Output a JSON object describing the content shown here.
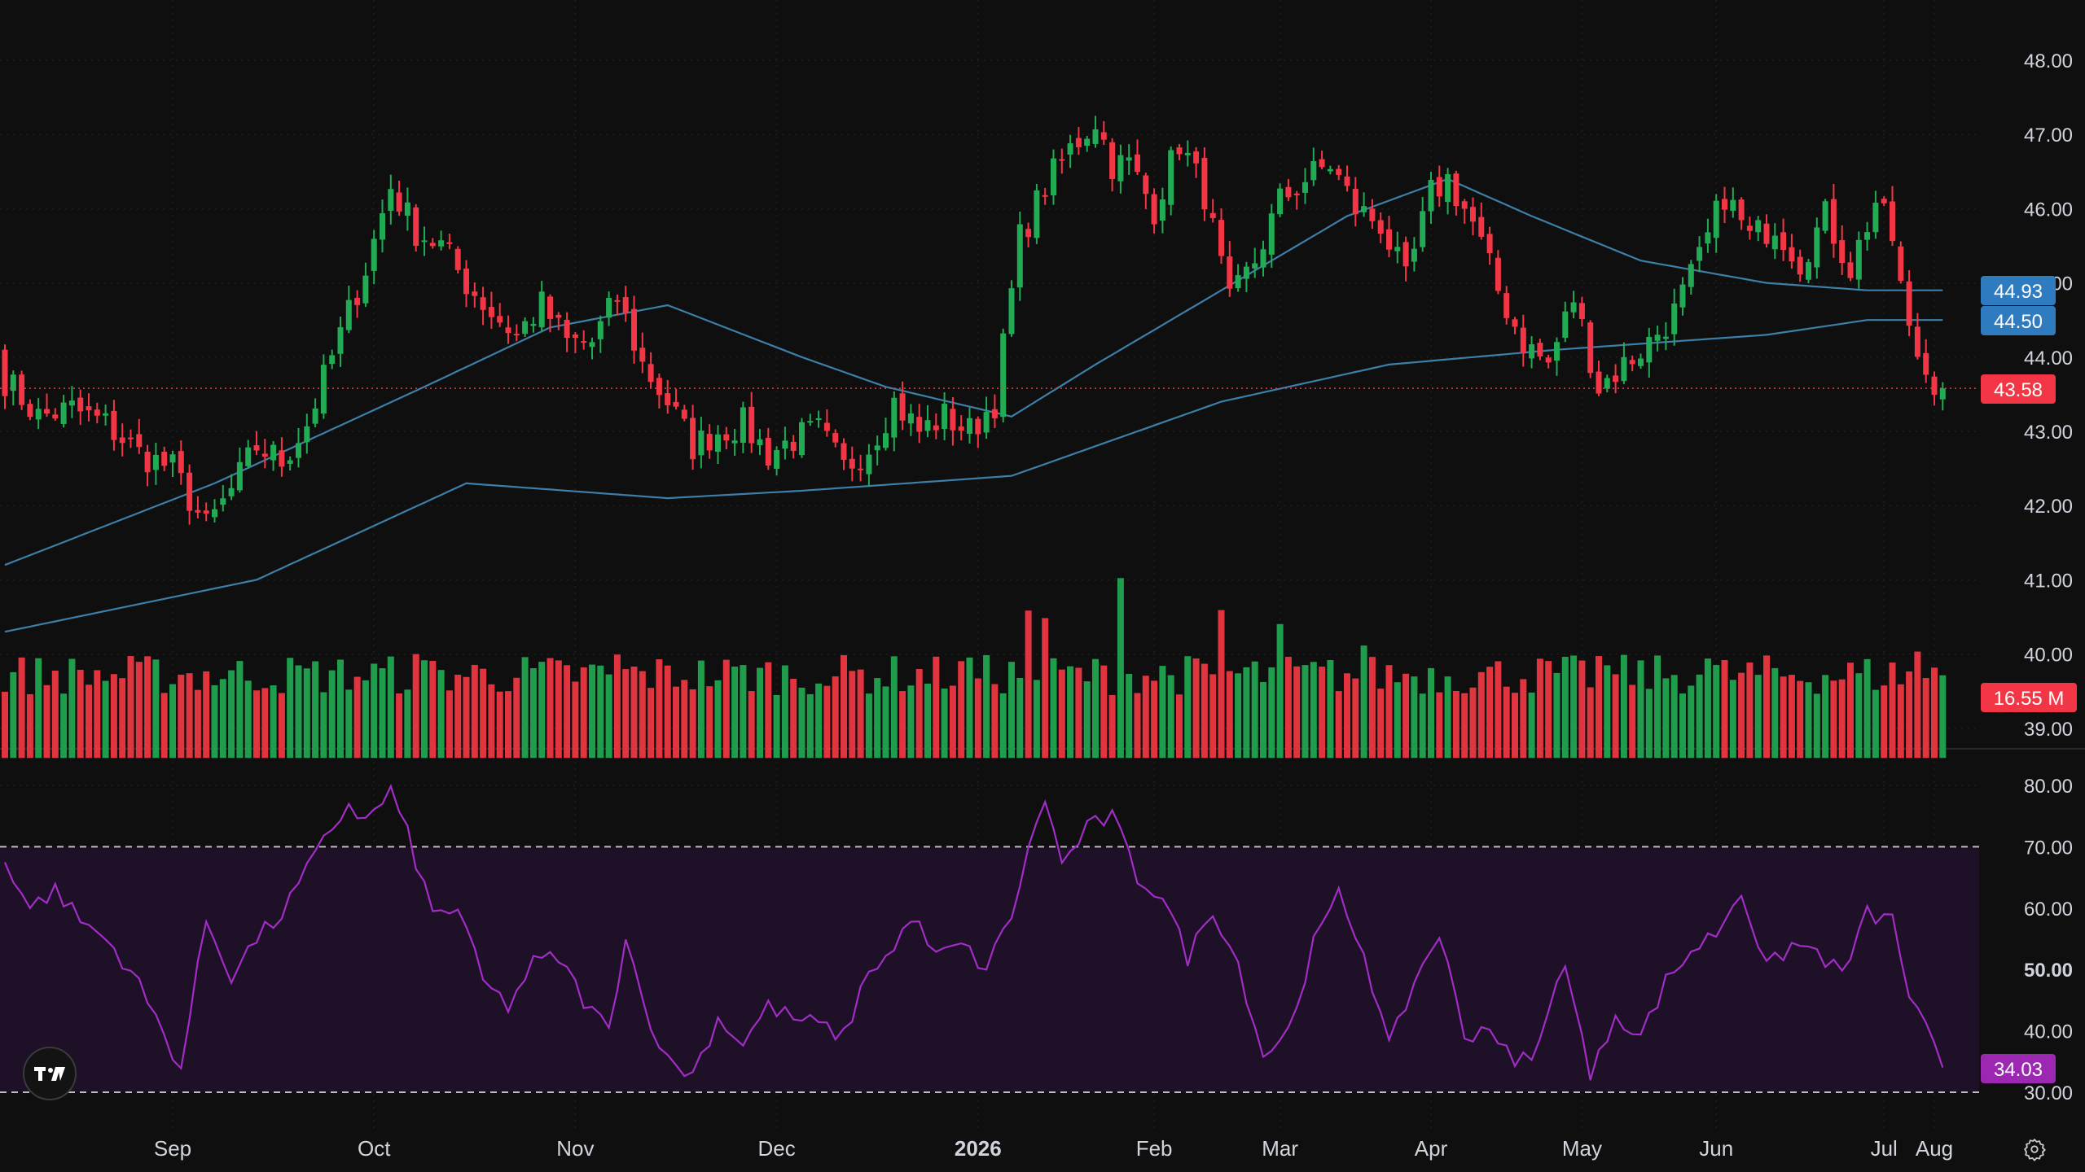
{
  "colors": {
    "background": "#0f0f0f",
    "grid": "#1f1f1f",
    "up": "#22ab55",
    "down": "#f23645",
    "up_volume": "#1f9d4d",
    "down_volume": "#e0343f",
    "ma_line": "#3d7fa8",
    "ma_tag": "#2f7bbf",
    "rsi_line": "#a12dc6",
    "rsi_band": "#1e1026",
    "rsi_tag": "#9c27b0",
    "text": "#d1d4dc"
  },
  "icons": {
    "logo": "tradingview-logo-icon",
    "settings": "gear-icon"
  },
  "price_tags": {
    "ma_short": "44.93",
    "ma_long": "44.50",
    "last_price": "43.58",
    "volume": "16.55 M",
    "rsi": "34.03"
  },
  "chart_data": [
    {
      "type": "candlestick",
      "grid": true,
      "y_axis_position": "right",
      "ylim": [
        38.6,
        48.4
      ],
      "yticks": [
        "39.00",
        "40.00",
        "41.00",
        "42.00",
        "43.00",
        "44.00",
        "45.00",
        "46.00",
        "47.00",
        "48.00"
      ],
      "x_labels": [
        "Sep",
        "Oct",
        "Nov",
        "Dec",
        "2026",
        "Feb",
        "Mar",
        "Apr",
        "May",
        "Jun",
        "Jul",
        "Aug"
      ],
      "bold_x_labels": [
        "2026"
      ],
      "anchors": {
        "open_first": 44.1,
        "close": [
          [
            0,
            43.7
          ],
          [
            4,
            43.2
          ],
          [
            8,
            43.3
          ],
          [
            12,
            43.1
          ],
          [
            16,
            42.7
          ],
          [
            20,
            42.5
          ],
          [
            24,
            41.7
          ],
          [
            27,
            42.2
          ],
          [
            30,
            42.8
          ],
          [
            33,
            42.6
          ],
          [
            36,
            43.1
          ],
          [
            40,
            44.3
          ],
          [
            43,
            45.2
          ],
          [
            46,
            46.3
          ],
          [
            49,
            45.7
          ],
          [
            52,
            45.5
          ],
          [
            55,
            45.0
          ],
          [
            58,
            44.6
          ],
          [
            61,
            44.3
          ],
          [
            64,
            44.7
          ],
          [
            67,
            44.2
          ],
          [
            70,
            44.2
          ],
          [
            73,
            44.8
          ],
          [
            76,
            43.9
          ],
          [
            79,
            43.4
          ],
          [
            82,
            42.8
          ],
          [
            85,
            43.0
          ],
          [
            88,
            43.1
          ],
          [
            91,
            42.7
          ],
          [
            94,
            42.9
          ],
          [
            97,
            43.0
          ],
          [
            100,
            42.5
          ],
          [
            103,
            42.8
          ],
          [
            106,
            43.4
          ],
          [
            109,
            43.0
          ],
          [
            112,
            43.2
          ],
          [
            115,
            43.0
          ],
          [
            118,
            43.4
          ],
          [
            121,
            45.6
          ],
          [
            124,
            46.3
          ],
          [
            127,
            46.8
          ],
          [
            130,
            47.2
          ],
          [
            132,
            46.6
          ],
          [
            134,
            46.6
          ],
          [
            137,
            46.0
          ],
          [
            140,
            46.9
          ],
          [
            143,
            46.2
          ],
          [
            146,
            44.7
          ],
          [
            149,
            45.3
          ],
          [
            152,
            46.1
          ],
          [
            155,
            46.4
          ],
          [
            158,
            46.6
          ],
          [
            161,
            46.0
          ],
          [
            164,
            45.8
          ],
          [
            167,
            45.0
          ],
          [
            170,
            46.2
          ],
          [
            172,
            46.4
          ],
          [
            175,
            45.8
          ],
          [
            178,
            44.9
          ],
          [
            181,
            44.2
          ],
          [
            184,
            43.9
          ],
          [
            187,
            44.8
          ],
          [
            190,
            43.6
          ],
          [
            193,
            43.9
          ],
          [
            196,
            44.2
          ],
          [
            199,
            44.6
          ],
          [
            202,
            45.3
          ],
          [
            205,
            46.2
          ],
          [
            208,
            45.6
          ],
          [
            211,
            45.8
          ],
          [
            214,
            45.3
          ],
          [
            217,
            45.9
          ],
          [
            220,
            45.2
          ],
          [
            223,
            46.1
          ],
          [
            225,
            45.6
          ],
          [
            227,
            44.3
          ],
          [
            229,
            43.8
          ],
          [
            231,
            43.58
          ]
        ],
        "wick_noise": 0.18
      },
      "moving_averages": [
        {
          "values": [
            [
              0,
              41.2
            ],
            [
              25,
              42.3
            ],
            [
              50,
              43.6
            ],
            [
              65,
              44.4
            ],
            [
              79,
              44.7
            ],
            [
              95,
              44.0
            ],
            [
              105,
              43.6
            ],
            [
              120,
              43.2
            ],
            [
              130,
              43.9
            ],
            [
              145,
              44.9
            ],
            [
              160,
              45.9
            ],
            [
              172,
              46.4
            ],
            [
              182,
              45.9
            ],
            [
              195,
              45.3
            ],
            [
              210,
              45.0
            ],
            [
              222,
              44.9
            ],
            [
              231,
              44.9
            ]
          ]
        },
        {
          "values": [
            [
              0,
              40.3
            ],
            [
              30,
              41.0
            ],
            [
              55,
              42.3
            ],
            [
              79,
              42.1
            ],
            [
              95,
              42.2
            ],
            [
              120,
              42.4
            ],
            [
              145,
              43.4
            ],
            [
              165,
              43.9
            ],
            [
              185,
              44.1
            ],
            [
              210,
              44.3
            ],
            [
              222,
              44.5
            ],
            [
              231,
              44.5
            ]
          ]
        }
      ]
    },
    {
      "type": "bar",
      "role": "volume",
      "base_line_price": 38.6,
      "top_reference_price": 40.0,
      "volume_units": "M",
      "last_volume": 16.55,
      "typical_volume": 18.0,
      "peaks": [
        [
          49,
          20.8
        ],
        [
          73,
          20.7
        ],
        [
          97,
          14.9
        ],
        [
          115,
          20.1
        ],
        [
          122,
          29.5
        ],
        [
          124,
          28.0
        ],
        [
          133,
          36.0
        ],
        [
          145,
          29.6
        ],
        [
          152,
          26.8
        ],
        [
          162,
          22.5
        ],
        [
          190,
          20.4
        ],
        [
          203,
          19.9
        ],
        [
          228,
          21.3
        ]
      ]
    },
    {
      "type": "line",
      "role": "rsi",
      "ylim": [
        27,
        86
      ],
      "yticks": [
        "30.00",
        "40.00",
        "50.00",
        "60.00",
        "70.00",
        "80.00"
      ],
      "bold_yticks": [
        "50.00"
      ],
      "band": [
        30,
        70
      ],
      "values": [
        [
          0,
          68
        ],
        [
          3,
          60
        ],
        [
          6,
          63
        ],
        [
          9,
          58
        ],
        [
          12,
          55
        ],
        [
          15,
          50
        ],
        [
          18,
          42
        ],
        [
          21,
          34
        ],
        [
          24,
          58
        ],
        [
          27,
          49
        ],
        [
          30,
          55
        ],
        [
          33,
          59
        ],
        [
          36,
          66
        ],
        [
          39,
          73
        ],
        [
          41,
          77
        ],
        [
          43,
          74
        ],
        [
          46,
          79
        ],
        [
          48,
          72
        ],
        [
          51,
          59
        ],
        [
          54,
          60
        ],
        [
          57,
          48
        ],
        [
          60,
          44
        ],
        [
          63,
          51
        ],
        [
          66,
          52
        ],
        [
          69,
          45
        ],
        [
          72,
          40
        ],
        [
          74,
          56
        ],
        [
          76,
          45
        ],
        [
          79,
          35
        ],
        [
          82,
          33
        ],
        [
          85,
          42
        ],
        [
          88,
          38
        ],
        [
          91,
          44
        ],
        [
          94,
          42
        ],
        [
          97,
          41
        ],
        [
          100,
          39
        ],
        [
          103,
          50
        ],
        [
          106,
          53
        ],
        [
          108,
          59
        ],
        [
          111,
          52
        ],
        [
          114,
          54
        ],
        [
          117,
          50
        ],
        [
          120,
          59
        ],
        [
          123,
          74
        ],
        [
          124,
          78
        ],
        [
          126,
          67
        ],
        [
          129,
          73
        ],
        [
          132,
          75
        ],
        [
          135,
          65
        ],
        [
          138,
          62
        ],
        [
          141,
          52
        ],
        [
          144,
          60
        ],
        [
          147,
          51
        ],
        [
          150,
          36
        ],
        [
          153,
          40
        ],
        [
          156,
          54
        ],
        [
          159,
          62
        ],
        [
          162,
          53
        ],
        [
          165,
          37
        ],
        [
          168,
          48
        ],
        [
          171,
          56
        ],
        [
          174,
          39
        ],
        [
          177,
          41
        ],
        [
          180,
          34
        ],
        [
          183,
          38
        ],
        [
          186,
          52
        ],
        [
          189,
          32
        ],
        [
          192,
          43
        ],
        [
          195,
          39
        ],
        [
          198,
          48
        ],
        [
          201,
          53
        ],
        [
          204,
          56
        ],
        [
          207,
          63
        ],
        [
          210,
          50
        ],
        [
          213,
          54
        ],
        [
          216,
          53
        ],
        [
          219,
          49
        ],
        [
          222,
          59
        ],
        [
          225,
          58
        ],
        [
          227,
          46
        ],
        [
          229,
          40
        ],
        [
          231,
          34.03
        ]
      ]
    }
  ]
}
